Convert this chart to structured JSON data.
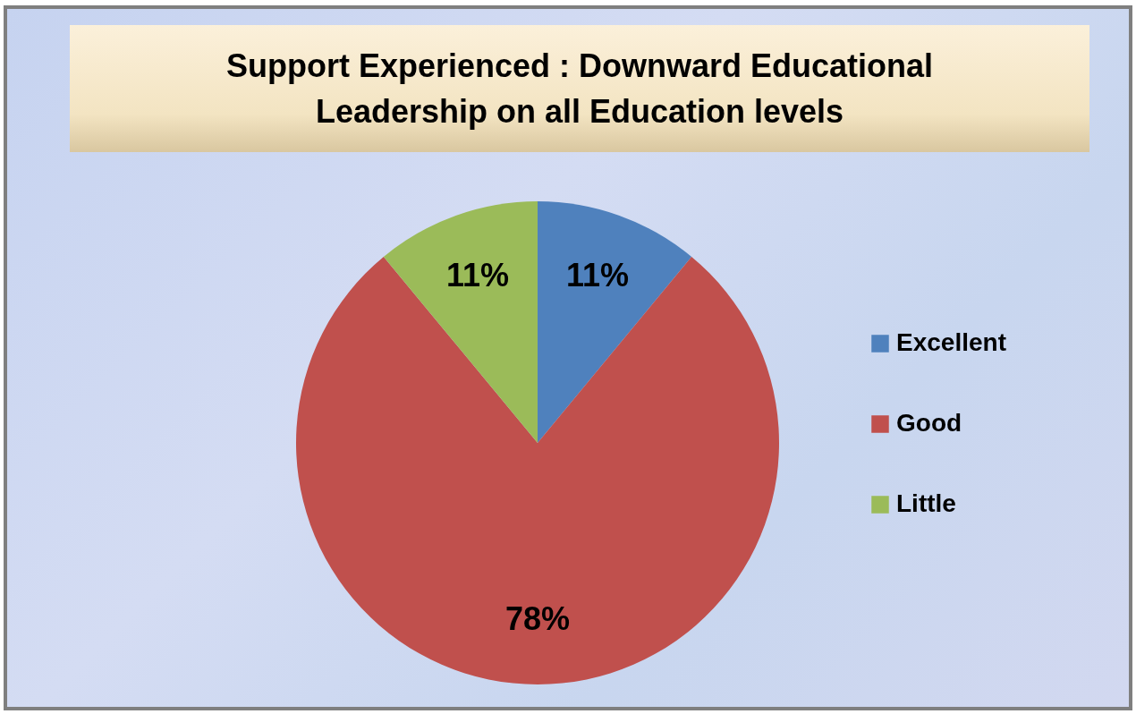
{
  "chart_data": {
    "type": "pie",
    "title": "Support Experienced : Downward Educational Leadership on all Education levels",
    "categories": [
      "Excellent",
      "Good",
      "Little"
    ],
    "values": [
      11,
      78,
      11
    ],
    "colors": [
      "#4f81bd",
      "#c0504d",
      "#9bbb59"
    ],
    "value_labels": [
      "11%",
      "78%",
      "11%"
    ],
    "legend": "right"
  }
}
